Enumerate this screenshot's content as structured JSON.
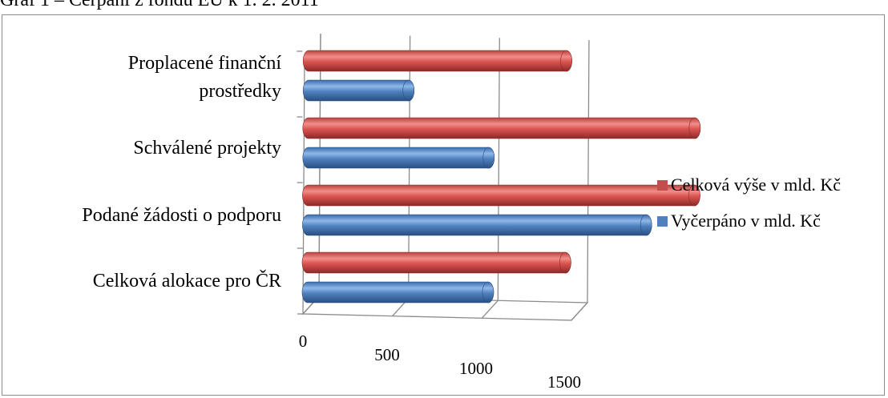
{
  "caption": "Graf 1 – Čerpání z fondů EU k 1. 2. 2011",
  "chart_data": {
    "type": "bar",
    "orientation": "horizontal",
    "style": "3d-cylinder",
    "categories": [
      "Celková alokace pro ČR",
      "Podané žádosti o podporu",
      "Schválené projekty",
      "Proplacené finanční prostředky"
    ],
    "category_lines": [
      [
        "Celková alokace pro ČR"
      ],
      [
        "Podané žádosti o podporu"
      ],
      [
        "Schválené projekty"
      ],
      [
        "Proplacené finanční",
        "prostředky"
      ]
    ],
    "series": [
      {
        "name": "Celková výše v mld. Kč",
        "color": "#c0504d",
        "values": [
          800,
          1200,
          1200,
          800
        ]
      },
      {
        "name": "Vyčerpáno v mld. Kč",
        "color": "#4f81bd",
        "values": [
          560,
          1050,
          560,
          310
        ]
      }
    ],
    "xlim": [
      0,
      1500
    ],
    "xticks": [
      0,
      500,
      1000,
      1500
    ],
    "legend_position": "right",
    "grid": true
  }
}
